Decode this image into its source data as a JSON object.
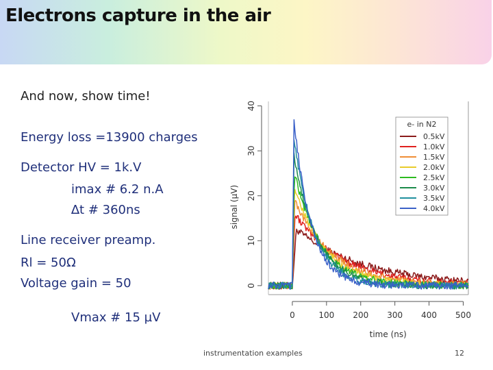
{
  "title": "Electrons capture in the air",
  "text": {
    "intro": "And now, show time!",
    "energy_loss": "Energy loss =13900 charges",
    "detector_hv": "Detector HV = 1k.V",
    "imax": "imax # 6.2 n.A",
    "delta_t": "∆t # 360ns",
    "line_receiver": "Line receiver preamp.",
    "rl": "Rl = 50Ω",
    "voltage_gain": "Voltage gain = 50",
    "vmax": "Vmax # 15 µV"
  },
  "footer": {
    "center": "instrumentation examples",
    "page": "12"
  },
  "colors": {
    "title_text": "#111111",
    "body_text": "#1f2f7a"
  },
  "chart_data": {
    "type": "line",
    "xlabel": "time (ns)",
    "ylabel": "signal (µV)",
    "xlim": [
      -70,
      515
    ],
    "ylim": [
      -2,
      41
    ],
    "xticks": [
      0,
      100,
      200,
      300,
      400,
      500
    ],
    "yticks": [
      0,
      10,
      20,
      30,
      40
    ],
    "grid": false,
    "legend": {
      "title": "e- in N2",
      "position": "top-right"
    },
    "series": [
      {
        "name": "0.5kV",
        "color": "#8b1a1a",
        "rise": 12,
        "peak": 12.5,
        "tau": 200
      },
      {
        "name": "1.0kV",
        "color": "#e0201e",
        "rise": 8,
        "peak": 16,
        "tau": 140
      },
      {
        "name": "1.5kV",
        "color": "#ef8e35",
        "rise": 7,
        "peak": 19,
        "tau": 110
      },
      {
        "name": "2.0kV",
        "color": "#e8cc2a",
        "rise": 6,
        "peak": 22,
        "tau": 90
      },
      {
        "name": "2.5kV",
        "color": "#2cbb20",
        "rise": 6,
        "peak": 25,
        "tau": 78
      },
      {
        "name": "3.0kV",
        "color": "#1a8a4a",
        "rise": 5,
        "peak": 29,
        "tau": 68
      },
      {
        "name": "3.5kV",
        "color": "#1f8f9e",
        "rise": 5,
        "peak": 33,
        "tau": 58
      },
      {
        "name": "4.0kV",
        "color": "#3a60c8",
        "rise": 5,
        "peak": 37,
        "tau": 50
      }
    ]
  }
}
